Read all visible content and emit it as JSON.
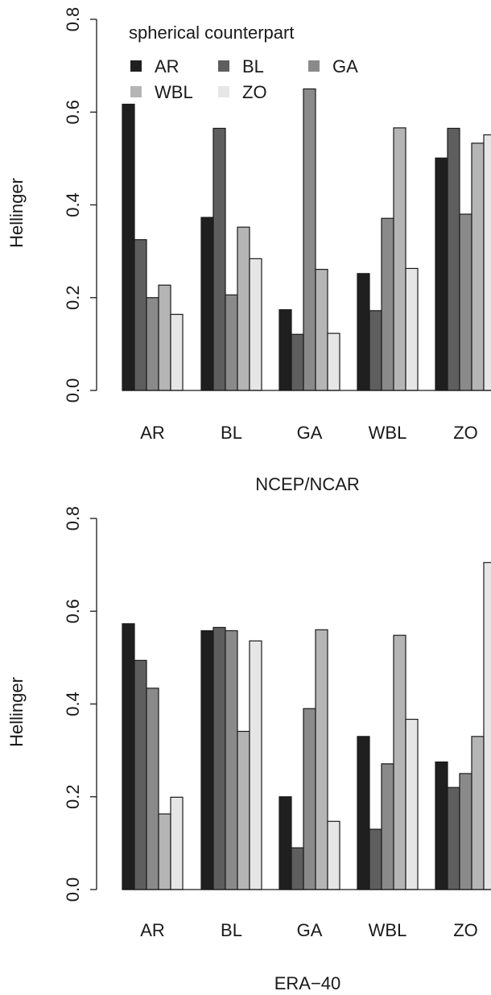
{
  "chart_data": [
    {
      "type": "bar",
      "title": "NCEP/NCAR",
      "ylabel": "Hellinger",
      "xlabel": "",
      "ylim": [
        0,
        0.8
      ],
      "yticks": [
        "0.0",
        "0.2",
        "0.4",
        "0.6",
        "0.8"
      ],
      "categories": [
        "AR",
        "BL",
        "GA",
        "WBL",
        "ZO"
      ],
      "grid": false,
      "legend_title": "spherical counterpart",
      "legend_position": "top-left",
      "series": [
        {
          "name": "AR",
          "color": "#1f1f1f",
          "values": [
            0.617,
            0.373,
            0.174,
            0.252,
            0.501
          ]
        },
        {
          "name": "BL",
          "color": "#5e5e5e",
          "values": [
            0.325,
            0.565,
            0.121,
            0.172,
            0.565
          ]
        },
        {
          "name": "GA",
          "color": "#8a8a8a",
          "values": [
            0.2,
            0.206,
            0.65,
            0.371,
            0.38
          ]
        },
        {
          "name": "WBL",
          "color": "#b5b5b5",
          "values": [
            0.227,
            0.352,
            0.261,
            0.566,
            0.533
          ]
        },
        {
          "name": "ZO",
          "color": "#e6e6e6",
          "values": [
            0.164,
            0.284,
            0.123,
            0.263,
            0.551
          ]
        }
      ]
    },
    {
      "type": "bar",
      "title": "ERA−40",
      "ylabel": "Hellinger",
      "xlabel": "",
      "ylim": [
        0,
        0.8
      ],
      "yticks": [
        "0.0",
        "0.2",
        "0.4",
        "0.6",
        "0.8"
      ],
      "categories": [
        "AR",
        "BL",
        "GA",
        "WBL",
        "ZO"
      ],
      "grid": false,
      "series": [
        {
          "name": "AR",
          "color": "#1f1f1f",
          "values": [
            0.573,
            0.558,
            0.2,
            0.33,
            0.275
          ]
        },
        {
          "name": "BL",
          "color": "#5e5e5e",
          "values": [
            0.494,
            0.565,
            0.09,
            0.13,
            0.22
          ]
        },
        {
          "name": "GA",
          "color": "#8a8a8a",
          "values": [
            0.434,
            0.558,
            0.39,
            0.271,
            0.25
          ]
        },
        {
          "name": "WBL",
          "color": "#b5b5b5",
          "values": [
            0.163,
            0.341,
            0.56,
            0.548,
            0.33
          ]
        },
        {
          "name": "ZO",
          "color": "#e6e6e6",
          "values": [
            0.199,
            0.536,
            0.147,
            0.367,
            0.705
          ]
        }
      ]
    }
  ]
}
